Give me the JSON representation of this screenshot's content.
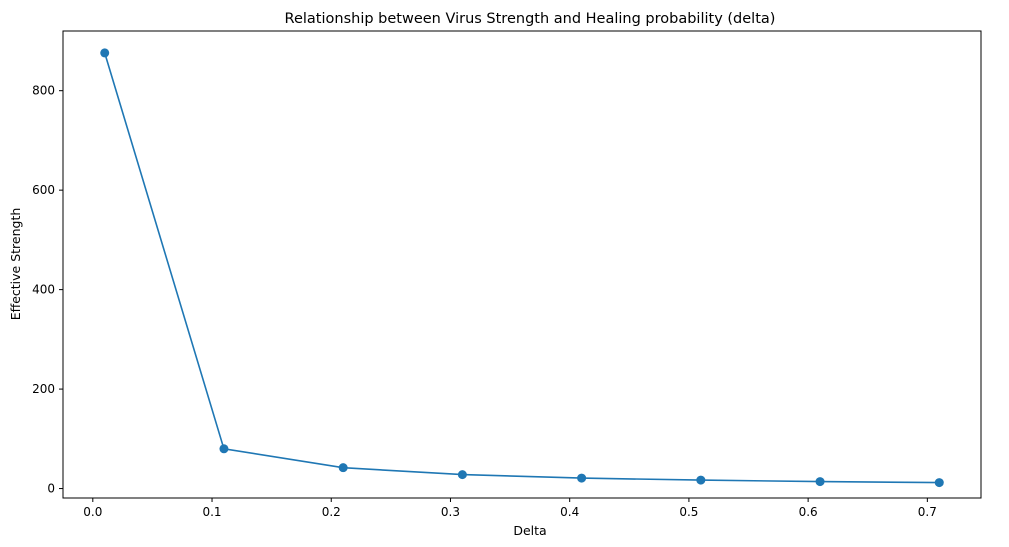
{
  "chart_data": {
    "type": "line",
    "title": "Relationship between Virus Strength and Healing probability (delta)",
    "xlabel": "Delta",
    "ylabel": "Effective Strength",
    "x": [
      0.01,
      0.11,
      0.21,
      0.31,
      0.41,
      0.51,
      0.61,
      0.71
    ],
    "series": [
      {
        "values": [
          876,
          80,
          42,
          28,
          21,
          17,
          14,
          12
        ]
      }
    ],
    "xlim": [
      -0.025,
      0.745
    ],
    "ylim": [
      -19,
      920
    ],
    "xticks": [
      0.0,
      0.1,
      0.2,
      0.3,
      0.4,
      0.5,
      0.6,
      0.7
    ],
    "xtick_labels": [
      "0.0",
      "0.1",
      "0.2",
      "0.3",
      "0.4",
      "0.5",
      "0.6",
      "0.7"
    ],
    "yticks": [
      0,
      200,
      400,
      600,
      800
    ],
    "ytick_labels": [
      "0",
      "200",
      "400",
      "600",
      "800"
    ],
    "color": "#1f77b4",
    "marker": "circle",
    "grid": false,
    "legend": "none"
  }
}
